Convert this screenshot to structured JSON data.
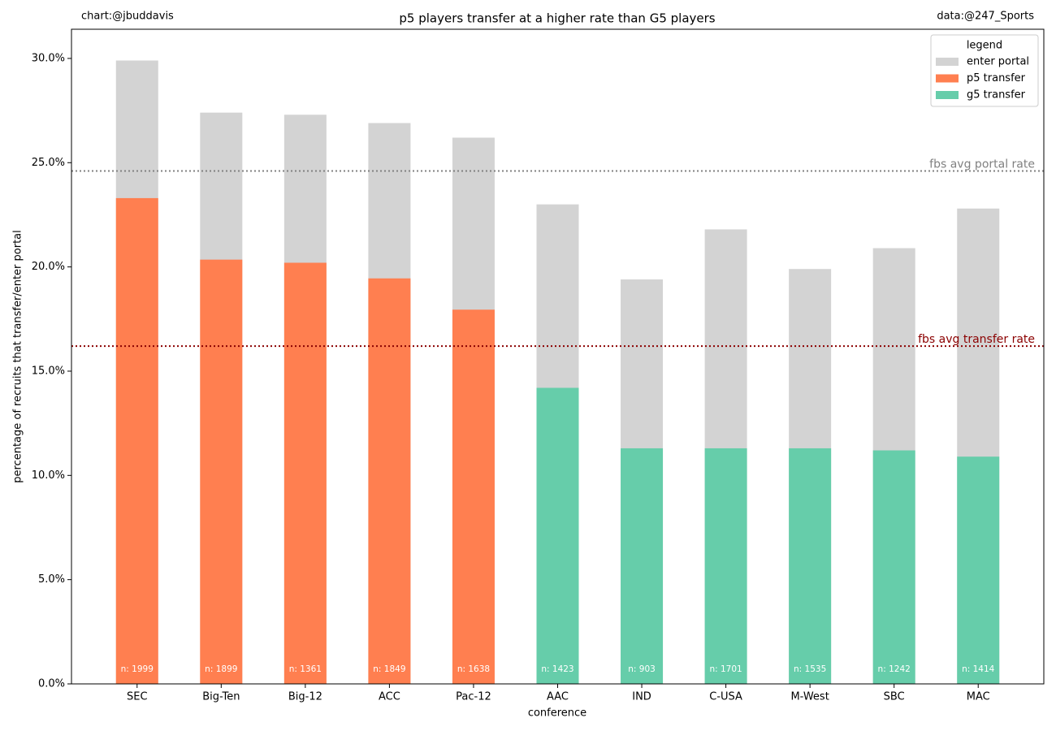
{
  "chart_data": {
    "type": "bar",
    "title": "p5 players transfer at a higher rate than G5 players",
    "credit_left": "chart:@jbuddavis",
    "credit_right": "data:@247_Sports",
    "x_label": "conference",
    "y_label": "percentage of recruits that transfer/enter portal",
    "legend_title": "legend",
    "legend": "upper right",
    "grid": false,
    "categories": [
      "SEC",
      "Big-Ten",
      "Big-12",
      "ACC",
      "Pac-12",
      "AAC",
      "IND",
      "C-USA",
      "M-West",
      "SBC",
      "MAC"
    ],
    "n_labels": [
      "n: 1999",
      "n: 1899",
      "n: 1361",
      "n: 1849",
      "n: 1638",
      "n: 1423",
      "n: 903",
      "n: 1701",
      "n: 1535",
      "n: 1242",
      "n: 1414"
    ],
    "series": [
      {
        "name": "enter portal",
        "color": "#d3d3d3",
        "values": [
          29.9,
          27.4,
          27.3,
          26.9,
          26.2,
          23.0,
          19.4,
          21.8,
          19.9,
          20.9,
          22.8
        ]
      },
      {
        "name": "p5 transfer",
        "color": "#ff7f50",
        "values": [
          23.3,
          20.35,
          20.2,
          19.45,
          17.95,
          null,
          null,
          null,
          null,
          null,
          null
        ]
      },
      {
        "name": "g5 transfer",
        "color": "#66cdaa",
        "values": [
          null,
          null,
          null,
          null,
          null,
          14.2,
          11.3,
          11.3,
          11.3,
          11.2,
          10.9
        ]
      }
    ],
    "reference_lines": [
      {
        "label": "fbs avg portal rate",
        "value": 24.6,
        "color": "#808080"
      },
      {
        "label": "fbs avg transfer rate",
        "value": 16.2,
        "color": "#8b0000"
      }
    ],
    "ylim": [
      0,
      31.4
    ],
    "yticks": [
      {
        "value": 0,
        "label": "0.0%"
      },
      {
        "value": 5,
        "label": "5.0%"
      },
      {
        "value": 10,
        "label": "10.0%"
      },
      {
        "value": 15,
        "label": "15.0%"
      },
      {
        "value": 20,
        "label": "20.0%"
      },
      {
        "value": 25,
        "label": "25.0%"
      },
      {
        "value": 30,
        "label": "30.0%"
      }
    ]
  }
}
